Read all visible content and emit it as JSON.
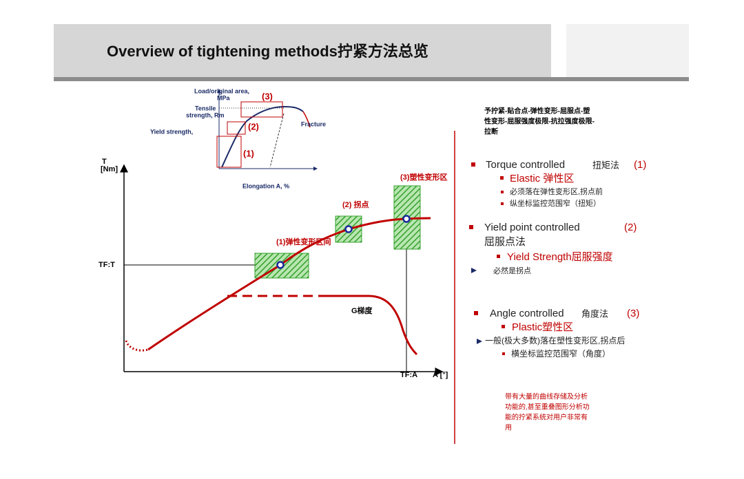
{
  "header": {
    "title": "Overview of tightening methods拧紧方法总览"
  },
  "inset": {
    "y_axis_line1": "Load/original area,",
    "y_axis_line2": "MPa",
    "box3": "(3)",
    "tensile_line1": "Tensile",
    "tensile_line2": "strength, Rm",
    "box2": "(2)",
    "yield": "Yield strength,",
    "box1": "(1)",
    "fracture": "Fracture",
    "x_axis": "Elongation A, %"
  },
  "main": {
    "y_axis_line1": "T",
    "y_axis_line2": "[Nm]",
    "tf_t": "TF:T",
    "tf_a": "TF:A",
    "x_axis": "A [°]",
    "zone1": "(1)弹性变形区间",
    "zone2": "(2) 拐点",
    "zone3": "(3)塑性变形区",
    "gradient": "G梯度"
  },
  "intro": [
    "予拧紧-贴合点-弹性变形-屈服点-塑",
    "性变形-屈服强度极限-抗拉强度极限-",
    "拉断"
  ],
  "methods": [
    {
      "name": "Torque controlled",
      "cn": "扭矩法",
      "num": "(1)",
      "zone": "Elastic 弹性区",
      "notes": [
        "必须落在弹性变形区,拐点前",
        "纵坐标监控范围窄（扭矩）"
      ]
    },
    {
      "name": "Yield point controlled",
      "num": "(2)",
      "cn": "屈服点法",
      "zone": "Yield Strength屈服强度",
      "notes": [
        "必然是拐点"
      ]
    },
    {
      "name": "Angle controlled",
      "cn": "角度法",
      "num": "(3)",
      "zone": "Plastic塑性区",
      "notes": [
        "一般(极大多数)落在塑性变形区,拐点后",
        "横坐标监控范围窄（角度）"
      ]
    }
  ],
  "footnote": [
    "带有大量的曲线存储及分析",
    "功能的,甚至重叠图形分析功",
    "能的拧紧系统对用户非常有",
    "用"
  ]
}
